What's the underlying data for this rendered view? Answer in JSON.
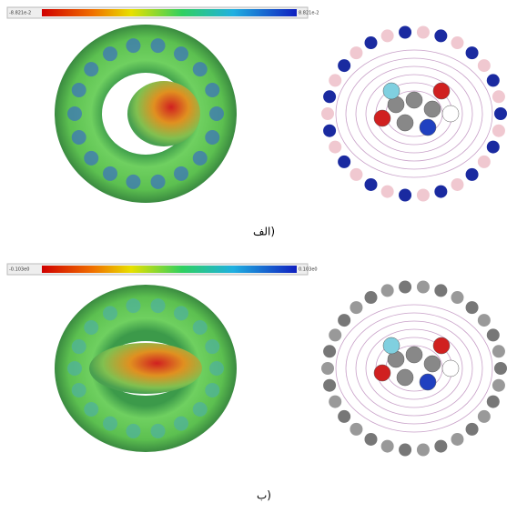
{
  "panels": [
    {
      "label": "الف)",
      "colorbar": {
        "min_label": "-8.821e-2",
        "max_label": "8.821e-2"
      }
    },
    {
      "label": "ب)",
      "colorbar": {
        "min_label": "-0.103e0",
        "max_label": "0.103e0"
      }
    }
  ]
}
